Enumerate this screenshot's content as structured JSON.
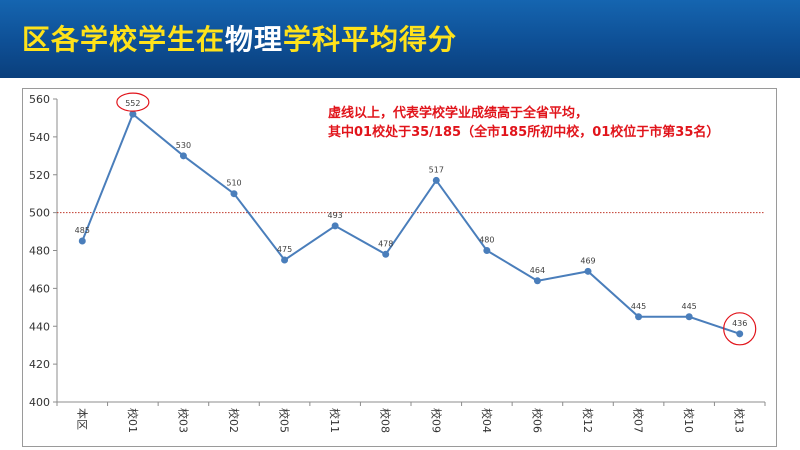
{
  "header": {
    "title_part1": "区各学校学生在",
    "title_part2": "物理",
    "title_part3": "学科平均得分"
  },
  "annotation": {
    "line1": "虚线以上，代表学校学业成绩高于全省平均，",
    "line2": "其中01校处于35/185（全市185所初中校，01校位于市第35名）"
  },
  "chart_data": {
    "type": "line",
    "title": "",
    "xlabel": "",
    "ylabel": "",
    "categories": [
      "本区",
      "校01",
      "校03",
      "校02",
      "校05",
      "校11",
      "校08",
      "校09",
      "校04",
      "校06",
      "校12",
      "校07",
      "校10",
      "校13"
    ],
    "series": [
      {
        "values": [
          485,
          552,
          530,
          510,
          475,
          493,
          478,
          517,
          480,
          464,
          469,
          445,
          445,
          436
        ],
        "labels": [
          "485",
          "552",
          "530",
          "510",
          "475",
          "493",
          "478",
          "517",
          "480",
          "464",
          "469",
          "445",
          "445",
          "436"
        ]
      }
    ],
    "ylim": [
      400,
      560
    ],
    "yticks": [
      "400",
      "420",
      "440",
      "460",
      "480",
      "500",
      "520",
      "540",
      "560"
    ],
    "reference_line": {
      "value": 500,
      "style": "dotted",
      "color": "#c0392b"
    },
    "highlighted_points": [
      1,
      13
    ],
    "grid": false,
    "colors": {
      "line": "#4a7ebb",
      "marker": "#4a7ebb",
      "highlight": "#e1141b"
    }
  }
}
